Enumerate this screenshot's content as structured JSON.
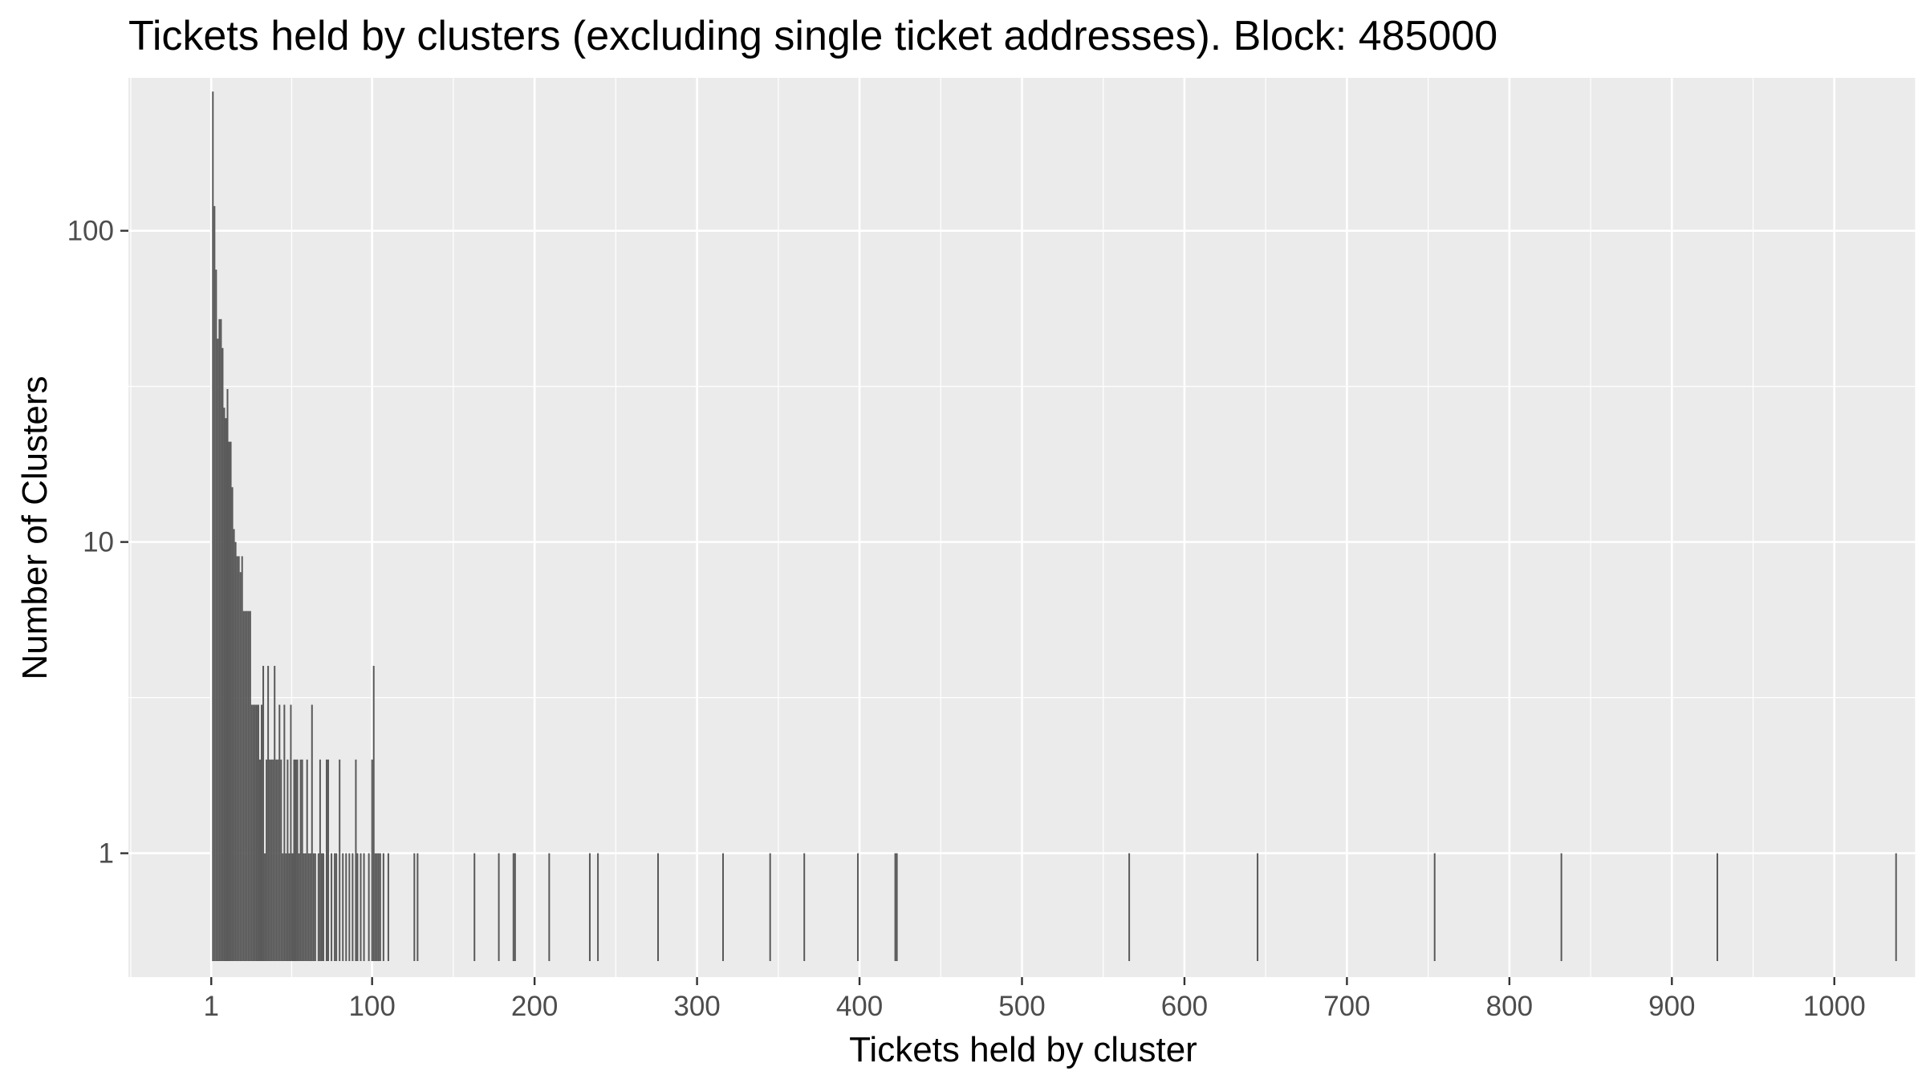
{
  "chart_data": {
    "type": "bar",
    "title": "Tickets held by clusters (excluding single ticket addresses). Block:  485000",
    "xlabel": "Tickets held by cluster",
    "ylabel": "Number of Clusters",
    "y_scale": "log10",
    "x_ticks": [
      1,
      100,
      200,
      300,
      400,
      500,
      600,
      700,
      800,
      900,
      1000
    ],
    "y_ticks": [
      1,
      10,
      100
    ],
    "xlim": [
      -50,
      1050
    ],
    "ylim": [
      0.4,
      310
    ],
    "grid": true,
    "legend": "none",
    "colors": {
      "panel": "#ebebeb",
      "grid": "#ffffff",
      "bar": "#595959"
    },
    "series": [
      {
        "x": [
          2,
          3,
          4,
          5,
          6,
          7,
          8,
          9,
          10,
          11,
          12,
          13,
          14,
          15,
          16,
          17,
          18,
          19,
          20,
          21,
          22,
          23,
          24,
          25,
          26,
          27,
          28,
          29,
          30,
          31,
          32,
          33,
          34,
          35,
          36,
          37,
          38,
          39,
          40,
          41,
          42,
          43,
          44,
          45,
          46,
          47,
          48,
          49,
          50,
          51,
          52,
          53,
          54,
          55,
          56,
          57,
          58,
          59,
          60,
          61,
          62,
          63,
          64,
          65,
          67,
          68,
          69,
          70,
          72,
          73,
          75,
          77,
          78,
          80,
          82,
          84,
          86,
          88,
          90,
          91,
          93,
          95,
          98,
          100,
          101,
          102,
          103,
          104,
          105,
          107,
          110,
          126,
          128,
          163,
          178,
          187,
          188,
          209,
          234,
          239,
          276,
          316,
          345,
          366,
          399,
          422,
          423,
          566,
          645,
          754,
          832,
          928,
          1038
        ],
        "values": [
          280,
          120,
          75,
          45,
          52,
          52,
          42,
          27,
          25,
          31,
          21,
          21,
          15,
          11,
          10,
          9,
          9,
          8,
          9,
          6,
          6,
          6,
          6,
          6,
          3,
          3,
          3,
          3,
          3,
          2,
          3,
          4,
          1,
          2,
          4,
          2,
          2,
          2,
          4,
          2,
          2,
          3,
          2,
          1,
          3,
          1,
          2,
          1,
          3,
          1,
          2,
          2,
          2,
          1,
          2,
          2,
          1,
          1,
          2,
          1,
          1,
          3,
          1,
          1,
          1,
          2,
          1,
          1,
          2,
          2,
          1,
          1,
          1,
          2,
          1,
          1,
          1,
          1,
          2,
          1,
          1,
          1,
          1,
          2,
          4,
          1,
          1,
          1,
          1,
          1,
          1,
          1,
          1,
          1,
          1,
          1,
          1,
          1,
          1,
          1,
          1,
          1,
          1,
          1,
          1,
          1,
          1,
          1,
          1,
          1,
          1,
          1,
          1
        ]
      }
    ]
  }
}
